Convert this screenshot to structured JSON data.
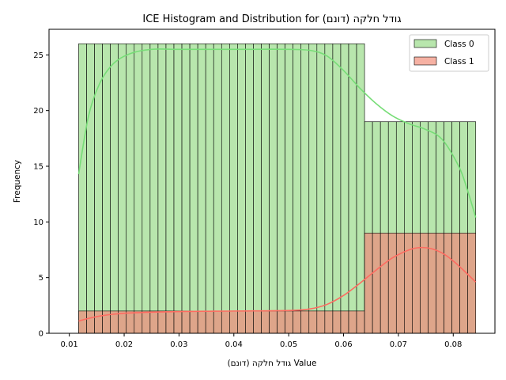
{
  "chart_data": {
    "type": "histogram",
    "title": "ICE Histogram and Distribution for גודל חלקה (דונם)",
    "xlabel": "גודל חלקה (דונם) Value",
    "ylabel": "Frequency",
    "xlim": [
      0.0063,
      0.0876
    ],
    "ylim": [
      0,
      27.3
    ],
    "xticks": [
      0.01,
      0.02,
      0.03,
      0.04,
      0.05,
      0.06,
      0.07,
      0.08
    ],
    "xtick_labels": [
      "0.01",
      "0.02",
      "0.03",
      "0.04",
      "0.05",
      "0.06",
      "0.07",
      "0.08"
    ],
    "yticks": [
      0,
      5,
      10,
      15,
      20,
      25
    ],
    "ytick_labels": [
      "0",
      "5",
      "10",
      "15",
      "20",
      "25"
    ],
    "bins": {
      "start": 0.0117,
      "end": 0.0841,
      "count": 50
    },
    "series": [
      {
        "name": "Class 0",
        "fill": "#b8e6ad",
        "line": "#77dd77",
        "segments": [
          {
            "from": 0.0117,
            "to": 0.0638,
            "value": 26
          },
          {
            "from": 0.0638,
            "to": 0.0841,
            "value": 19
          }
        ],
        "kde": [
          [
            0.0117,
            14.3
          ],
          [
            0.0135,
            19.5
          ],
          [
            0.0155,
            22.4
          ],
          [
            0.018,
            24.2
          ],
          [
            0.021,
            25.1
          ],
          [
            0.025,
            25.5
          ],
          [
            0.03,
            25.5
          ],
          [
            0.04,
            25.5
          ],
          [
            0.05,
            25.5
          ],
          [
            0.054,
            25.4
          ],
          [
            0.057,
            24.9
          ],
          [
            0.06,
            23.6
          ],
          [
            0.063,
            22.0
          ],
          [
            0.066,
            20.6
          ],
          [
            0.069,
            19.5
          ],
          [
            0.072,
            18.8
          ],
          [
            0.075,
            18.3
          ],
          [
            0.078,
            17.4
          ],
          [
            0.081,
            15.0
          ],
          [
            0.0825,
            13.0
          ],
          [
            0.0841,
            10.4
          ]
        ]
      },
      {
        "name": "Class 1",
        "fill": "#dea58a",
        "line": "#ff6b61",
        "segments": [
          {
            "from": 0.0117,
            "to": 0.0638,
            "value": 2
          },
          {
            "from": 0.0638,
            "to": 0.0841,
            "value": 9
          }
        ],
        "kde": [
          [
            0.0117,
            1.1
          ],
          [
            0.015,
            1.5
          ],
          [
            0.02,
            1.8
          ],
          [
            0.03,
            1.95
          ],
          [
            0.04,
            2.0
          ],
          [
            0.05,
            2.05
          ],
          [
            0.054,
            2.2
          ],
          [
            0.057,
            2.6
          ],
          [
            0.06,
            3.4
          ],
          [
            0.063,
            4.5
          ],
          [
            0.066,
            5.7
          ],
          [
            0.069,
            6.8
          ],
          [
            0.072,
            7.5
          ],
          [
            0.074,
            7.7
          ],
          [
            0.076,
            7.6
          ],
          [
            0.078,
            7.2
          ],
          [
            0.08,
            6.5
          ],
          [
            0.082,
            5.6
          ],
          [
            0.0841,
            4.6
          ]
        ]
      }
    ],
    "legend": {
      "position": "top-right",
      "entries": [
        "Class 0",
        "Class 1"
      ]
    },
    "grid": false
  }
}
